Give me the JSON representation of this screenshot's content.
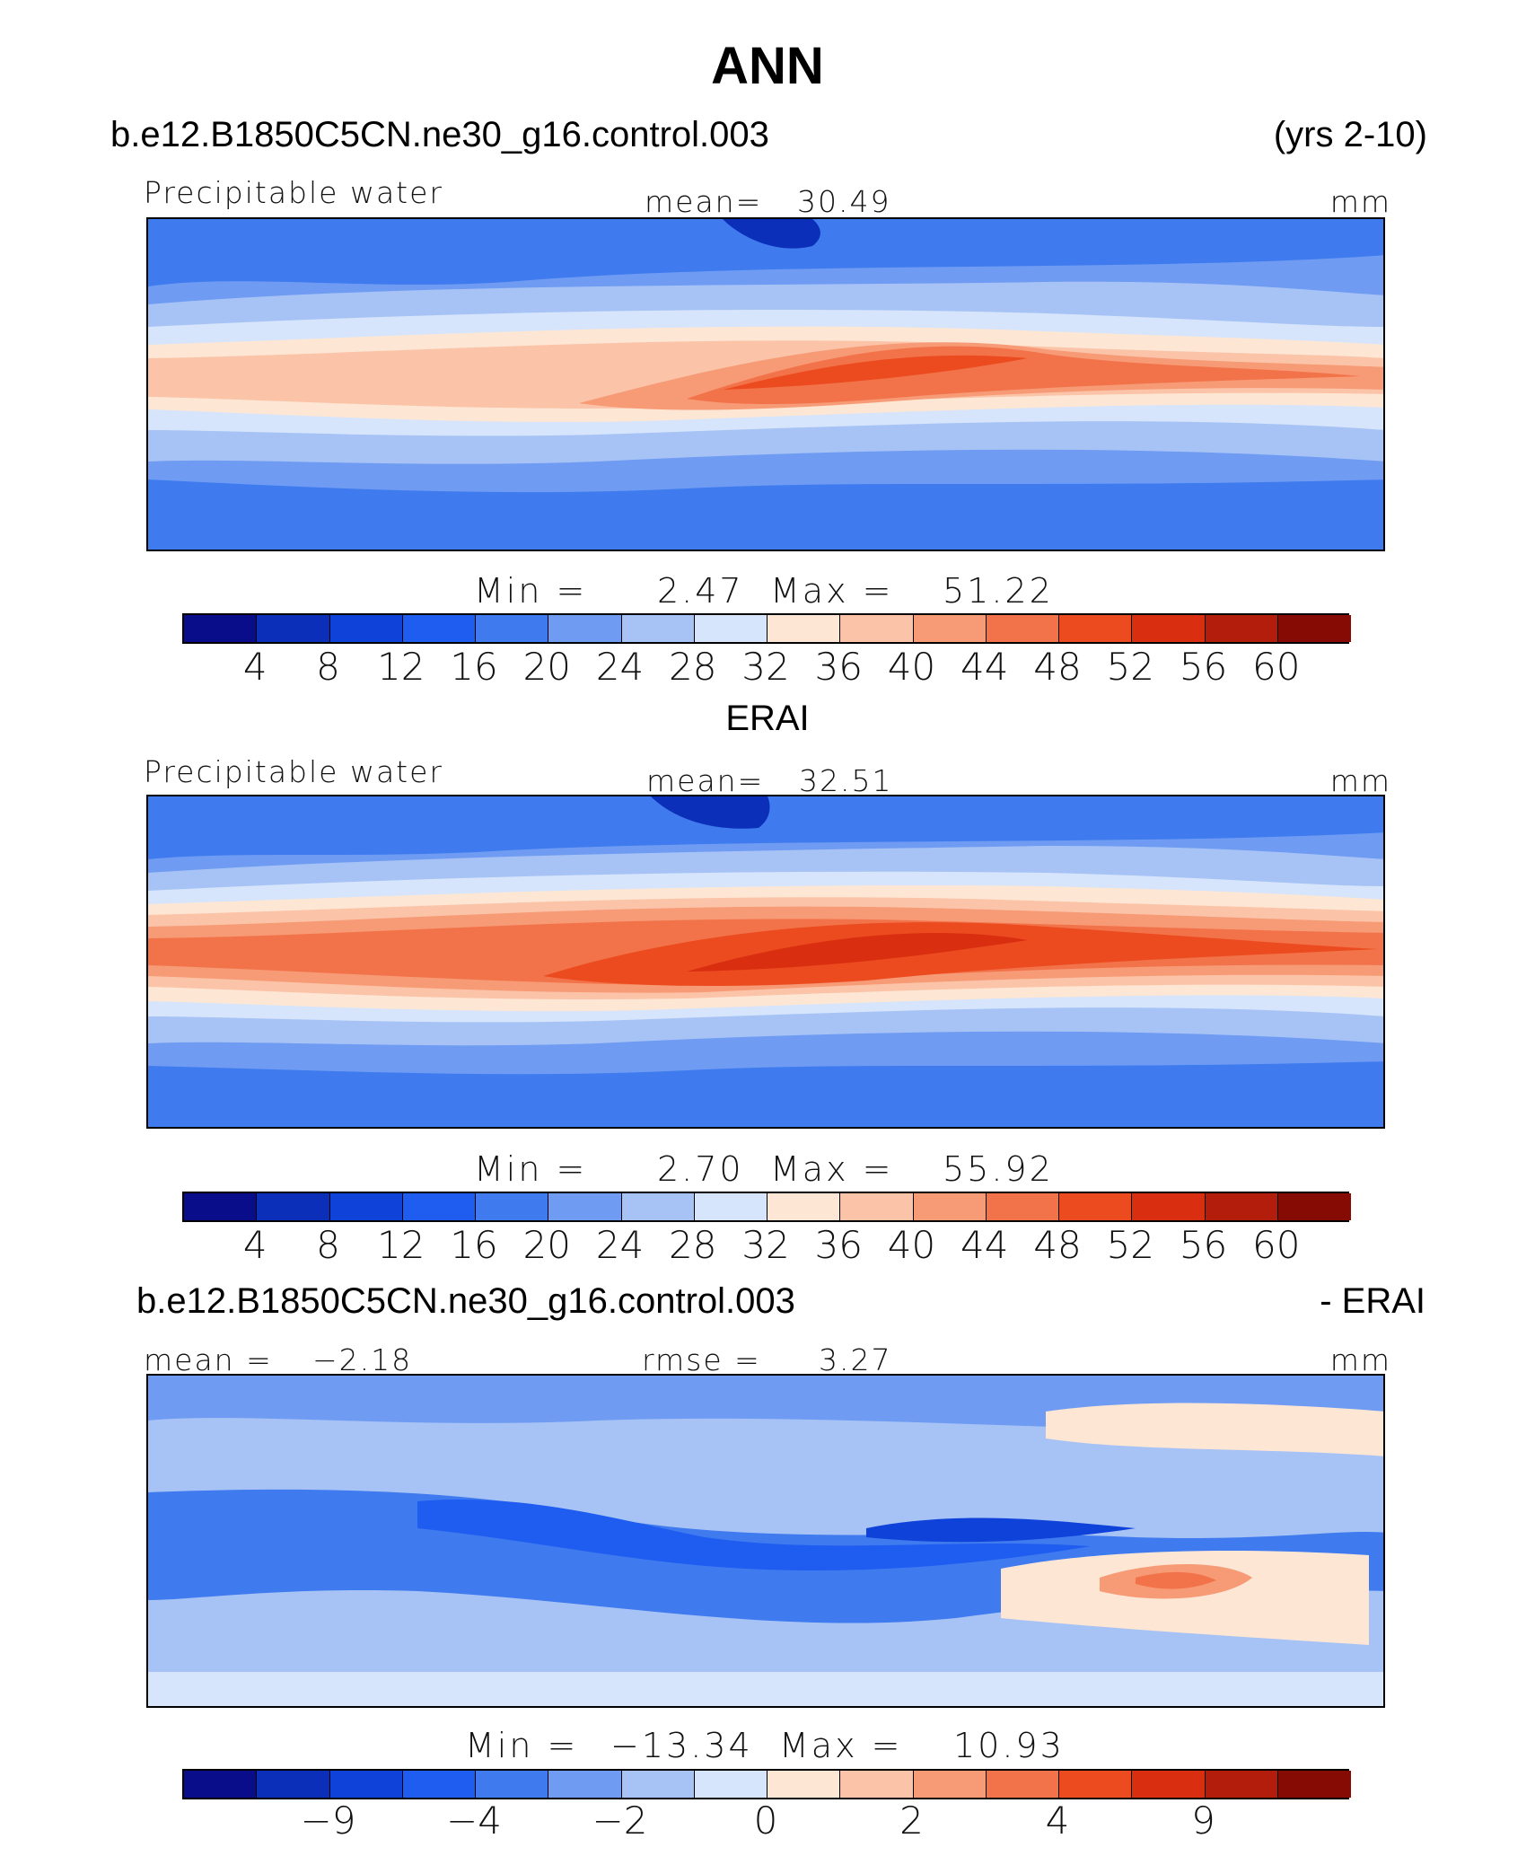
{
  "title": "ANN",
  "panel1": {
    "case": "b.e12.B1850C5CN.ne30_g16.control.003",
    "years": "(yrs 2-10)",
    "varname": "Precipitable water",
    "mean_label": "mean=",
    "mean_value": "30.49",
    "units": "mm",
    "min_label": "Min =",
    "min_value": "2.47",
    "max_label": "Max =",
    "max_value": "51.22"
  },
  "panel2": {
    "case": "ERAI",
    "varname": "Precipitable water",
    "mean_label": "mean=",
    "mean_value": "32.51",
    "units": "mm",
    "min_label": "Min =",
    "min_value": "2.70",
    "max_label": "Max =",
    "max_value": "55.92"
  },
  "panel3": {
    "case": "b.e12.B1850C5CN.ne30_g16.control.003",
    "minus": "- ERAI",
    "mean_label": "mean =",
    "mean_value": "−2.18",
    "rmse_label": "rmse =",
    "rmse_value": "3.27",
    "units": "mm",
    "min_label": "Min =",
    "min_value": "−13.34",
    "max_label": "Max =",
    "max_value": "10.93"
  },
  "colors": [
    "#0a0d8a",
    "#0b2fb8",
    "#0f42d8",
    "#1f5cf0",
    "#3f7bef",
    "#6f9cf2",
    "#a7c3f6",
    "#d6e5fb",
    "#fde6d4",
    "#fbc4a8",
    "#f79a76",
    "#f2734a",
    "#eb4b1f",
    "#d92f10",
    "#b21d0c",
    "#860b05"
  ],
  "chart_data": [
    {
      "type": "heatmap",
      "name": "b.e12.B1850C5CN.ne30_g16.control.003",
      "variable": "Precipitable water",
      "units": "mm",
      "mean": 30.49,
      "min": 2.47,
      "max": 51.22,
      "colorbar_levels": [
        "4",
        "8",
        "12",
        "16",
        "20",
        "24",
        "28",
        "32",
        "36",
        "40",
        "44",
        "48",
        "52",
        "56",
        "60"
      ]
    },
    {
      "type": "heatmap",
      "name": "ERAI",
      "variable": "Precipitable water",
      "units": "mm",
      "mean": 32.51,
      "min": 2.7,
      "max": 55.92,
      "colorbar_levels": [
        "4",
        "8",
        "12",
        "16",
        "20",
        "24",
        "28",
        "32",
        "36",
        "40",
        "44",
        "48",
        "52",
        "56",
        "60"
      ]
    },
    {
      "type": "heatmap",
      "name": "b.e12.B1850C5CN.ne30_g16.control.003 - ERAI",
      "units": "mm",
      "mean": -2.18,
      "rmse": 3.27,
      "min": -13.34,
      "max": 10.93,
      "colorbar_levels": [
        "−9",
        "−4",
        "−2",
        "0",
        "2",
        "4",
        "9"
      ]
    }
  ]
}
